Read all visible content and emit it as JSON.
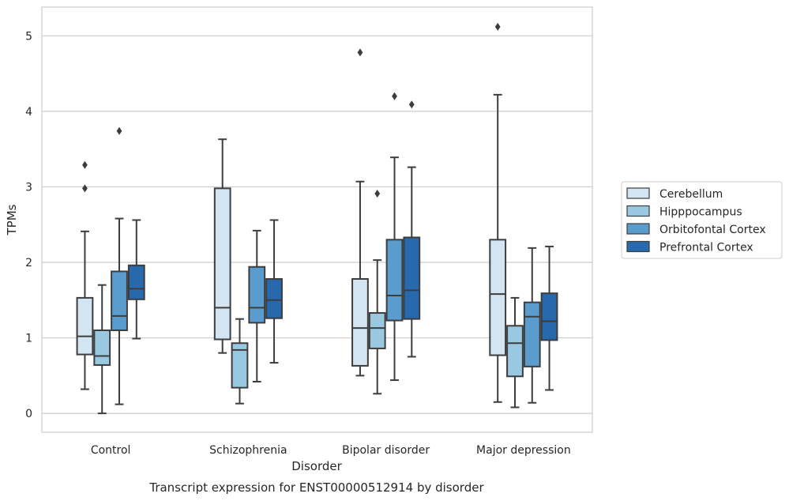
{
  "chart_data": {
    "type": "box",
    "caption": "Transcript expression for ENST00000512914 by disorder",
    "xlabel": "Disorder",
    "ylabel": "TPMs",
    "ylim": [
      -0.25,
      5.38
    ],
    "yticks": [
      "0",
      "1",
      "2",
      "3",
      "4",
      "5"
    ],
    "grid": "horizontal",
    "legend_position": "right",
    "categories": [
      "Control",
      "Schizophrenia",
      "Bipolar disorder",
      "Major depression"
    ],
    "series": [
      {
        "name": "Cerebellum",
        "color": "#d3e4f3",
        "boxes": [
          {
            "whislo": 0.32,
            "q1": 0.78,
            "med": 1.02,
            "q3": 1.53,
            "whishi": 2.41,
            "fliers": [
              2.98,
              3.29
            ]
          },
          {
            "whislo": 0.8,
            "q1": 0.98,
            "med": 1.4,
            "q3": 2.98,
            "whishi": 3.63,
            "fliers": []
          },
          {
            "whislo": 0.5,
            "q1": 0.63,
            "med": 1.13,
            "q3": 1.78,
            "whishi": 3.07,
            "fliers": [
              4.78
            ]
          },
          {
            "whislo": 0.15,
            "q1": 0.77,
            "med": 1.58,
            "q3": 2.3,
            "whishi": 4.22,
            "fliers": [
              5.12
            ]
          }
        ]
      },
      {
        "name": "Hipppocampus",
        "color": "#9ac8e0",
        "boxes": [
          {
            "whislo": 0.0,
            "q1": 0.64,
            "med": 0.76,
            "q3": 1.1,
            "whishi": 1.7,
            "fliers": []
          },
          {
            "whislo": 0.13,
            "q1": 0.34,
            "med": 0.84,
            "q3": 0.93,
            "whishi": 1.25,
            "fliers": []
          },
          {
            "whislo": 0.26,
            "q1": 0.86,
            "med": 1.13,
            "q3": 1.33,
            "whishi": 2.03,
            "fliers": [
              2.91
            ]
          },
          {
            "whislo": 0.08,
            "q1": 0.49,
            "med": 0.93,
            "q3": 1.16,
            "whishi": 1.53,
            "fliers": []
          }
        ]
      },
      {
        "name": "Orbitofontal Cortex",
        "color": "#5a9ccd",
        "boxes": [
          {
            "whislo": 0.12,
            "q1": 1.1,
            "med": 1.29,
            "q3": 1.88,
            "whishi": 2.58,
            "fliers": [
              3.74
            ]
          },
          {
            "whislo": 0.42,
            "q1": 1.2,
            "med": 1.4,
            "q3": 1.94,
            "whishi": 2.42,
            "fliers": []
          },
          {
            "whislo": 0.44,
            "q1": 1.23,
            "med": 1.56,
            "q3": 2.3,
            "whishi": 3.39,
            "fliers": [
              4.2
            ]
          },
          {
            "whislo": 0.14,
            "q1": 0.62,
            "med": 1.28,
            "q3": 1.47,
            "whishi": 2.19,
            "fliers": []
          }
        ]
      },
      {
        "name": "Prefrontal Cortex",
        "color": "#2868ad",
        "boxes": [
          {
            "whislo": 0.99,
            "q1": 1.51,
            "med": 1.65,
            "q3": 1.96,
            "whishi": 2.56,
            "fliers": []
          },
          {
            "whislo": 0.67,
            "q1": 1.26,
            "med": 1.5,
            "q3": 1.78,
            "whishi": 2.56,
            "fliers": []
          },
          {
            "whislo": 0.75,
            "q1": 1.25,
            "med": 1.63,
            "q3": 2.33,
            "whishi": 3.26,
            "fliers": [
              4.09
            ]
          },
          {
            "whislo": 0.31,
            "q1": 0.97,
            "med": 1.22,
            "q3": 1.59,
            "whishi": 2.21,
            "fliers": []
          }
        ]
      }
    ]
  }
}
